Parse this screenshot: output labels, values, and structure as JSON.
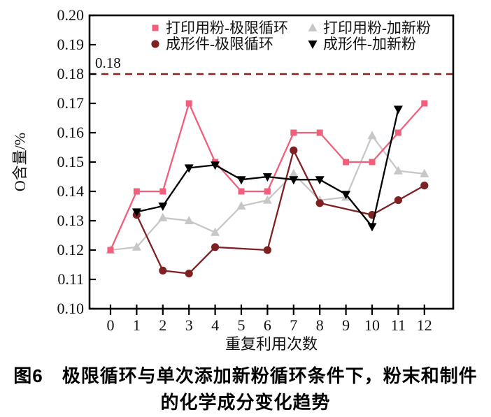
{
  "figure": {
    "caption_line1": "图6　极限循环与单次添加新粉循环条件下，粉末和制件",
    "caption_line2": "的化学成分变化趋势"
  },
  "chart_data": {
    "type": "line",
    "title": "",
    "xlabel": "重复利用次数",
    "ylabel": "O含量/%",
    "ylim": [
      0.1,
      0.2
    ],
    "grid": false,
    "y_ticks": [
      "0.10",
      "0.11",
      "0.12",
      "0.13",
      "0.14",
      "0.15",
      "0.16",
      "0.17",
      "0.18",
      "0.19",
      "0.20"
    ],
    "x_ticks": [
      0,
      1,
      2,
      3,
      4,
      5,
      6,
      7,
      8,
      9,
      10,
      11,
      12
    ],
    "reference_line": {
      "value": 0.18,
      "label": "0.18",
      "color": "#8b2124",
      "style": "dashed"
    },
    "series": [
      {
        "id": "print-powder-fresh-added",
        "name": "打印用粉-加新粉",
        "marker": "triangle-up",
        "color": "#c7c7c7",
        "x": [
          0,
          1,
          2,
          3,
          4,
          5,
          6,
          7,
          8,
          9,
          10,
          11,
          12
        ],
        "values": [
          0.12,
          0.121,
          0.131,
          0.13,
          0.126,
          0.135,
          0.137,
          0.146,
          0.137,
          0.138,
          0.159,
          0.147,
          0.146
        ]
      },
      {
        "id": "print-powder-limit-cycle",
        "name": "打印用粉-极限循环",
        "marker": "square",
        "color": "#f0607d",
        "x": [
          0,
          1,
          2,
          3,
          4,
          5,
          6,
          7,
          8,
          9,
          10,
          11,
          12
        ],
        "values": [
          0.12,
          0.14,
          0.14,
          0.17,
          0.15,
          0.14,
          0.14,
          0.16,
          0.16,
          0.15,
          0.15,
          0.16,
          0.17
        ]
      },
      {
        "id": "formed-part-limit-cycle",
        "name": "成形件-极限循环",
        "marker": "circle",
        "color": "#7e2123",
        "x": [
          1,
          2,
          3,
          4,
          6,
          7,
          8,
          10,
          11,
          12
        ],
        "values": [
          0.132,
          0.113,
          0.112,
          0.121,
          0.12,
          0.154,
          0.136,
          0.132,
          0.137,
          0.142
        ]
      },
      {
        "id": "formed-part-fresh-added",
        "name": "成形件-加新粉",
        "marker": "triangle-down",
        "color": "#000000",
        "x": [
          1,
          2,
          3,
          4,
          5,
          6,
          7,
          8,
          9,
          10,
          11
        ],
        "values": [
          0.133,
          0.135,
          0.148,
          0.149,
          0.144,
          0.145,
          0.144,
          0.144,
          0.139,
          0.128,
          0.168
        ]
      }
    ],
    "legend": {
      "position": "top-inside",
      "items": [
        {
          "series": 1,
          "label": "打印用粉-极限循环"
        },
        {
          "series": 0,
          "label": "打印用粉-加新粉"
        },
        {
          "series": 2,
          "label": "成形件-极限循环"
        },
        {
          "series": 3,
          "label": "成形件-加新粉"
        }
      ]
    }
  }
}
